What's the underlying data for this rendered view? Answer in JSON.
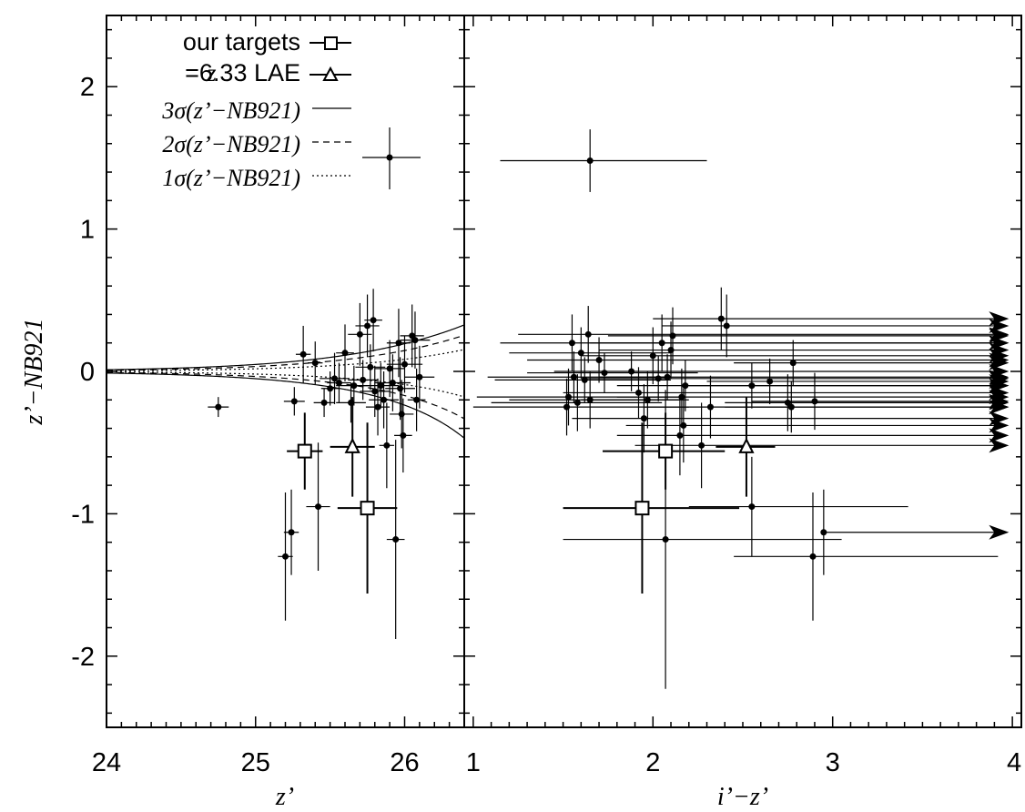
{
  "chart_data": {
    "type": "scatter",
    "ylabel": "z’−NB921",
    "ylim": [
      -2.5,
      2.5
    ],
    "yticks": [
      2,
      1,
      0,
      -1,
      -2
    ],
    "yticklabels": [
      "2",
      "1",
      "0",
      "-1",
      "-2"
    ],
    "legend": {
      "placement": "top-left",
      "entries": [
        {
          "label": "our targets",
          "symbol": "square"
        },
        {
          "label": "z=6.33 LAE",
          "symbol": "triangle"
        },
        {
          "label": "3σ(z’−NB921)",
          "line": "solid"
        },
        {
          "label": "2σ(z’−NB921)",
          "line": "dashed"
        },
        {
          "label": "1σ(z’−NB921)",
          "line": "dotted"
        }
      ],
      "typical_error_sample": {
        "x": 25.96,
        "y": 1.48,
        "xerr": 0.18,
        "yerr": 0.2
      }
    },
    "panels": [
      {
        "xlabel": "z’",
        "xlim": [
          24,
          26.4
        ],
        "xticks": [
          24,
          25,
          26
        ],
        "xticklabels": [
          "24",
          "25",
          "26"
        ],
        "sigma_curves": [
          {
            "label": "3σ(z’−NB921)",
            "style": "solid",
            "a": 0.0108,
            "b": 1.45,
            "x0": 24
          },
          {
            "label": "2σ(z’−NB921)",
            "style": "dashed",
            "a": 0.0072,
            "b": 1.5,
            "x0": 24
          },
          {
            "label": "1σ(z’−NB921)",
            "style": "dotted",
            "a": 0.0036,
            "b": 1.56,
            "x0": 24
          }
        ],
        "targets": [
          {
            "x": 25.33,
            "y": -0.56,
            "xerr": 0.12,
            "yerr": 0.27
          },
          {
            "x": 25.75,
            "y": -0.96,
            "xerr": 0.2,
            "yerr": 0.6
          }
        ],
        "lae": {
          "x": 25.65,
          "y": -0.53,
          "xerr": 0.15,
          "yerr": 0.35
        },
        "points": [
          {
            "x": 24.75,
            "y": -0.25,
            "xerr": 0.07,
            "yerr": 0.07
          },
          {
            "x": 25.2,
            "y": -1.3,
            "xerr": 0.05,
            "yerr": 0.45
          },
          {
            "x": 25.24,
            "y": -1.13,
            "xerr": 0.05,
            "yerr": 0.3
          },
          {
            "x": 25.26,
            "y": -0.21,
            "xerr": 0.07,
            "yerr": 0.1
          },
          {
            "x": 25.32,
            "y": 0.12,
            "xerr": 0.05,
            "yerr": 0.2
          },
          {
            "x": 25.4,
            "y": 0.06,
            "xerr": 0.05,
            "yerr": 0.15
          },
          {
            "x": 25.42,
            "y": -0.95,
            "xerr": 0.08,
            "yerr": 0.45
          },
          {
            "x": 25.46,
            "y": -0.22,
            "xerr": 0.07,
            "yerr": 0.1
          },
          {
            "x": 25.5,
            "y": -0.12,
            "xerr": 0.06,
            "yerr": 0.12
          },
          {
            "x": 25.53,
            "y": -0.05,
            "xerr": 0.1,
            "yerr": 0.18
          },
          {
            "x": 25.56,
            "y": -0.08,
            "xerr": 0.08,
            "yerr": 0.14
          },
          {
            "x": 25.6,
            "y": 0.13,
            "xerr": 0.06,
            "yerr": 0.2
          },
          {
            "x": 25.64,
            "y": -0.22,
            "xerr": 0.1,
            "yerr": 0.14
          },
          {
            "x": 25.66,
            "y": -0.1,
            "xerr": 0.12,
            "yerr": 0.14
          },
          {
            "x": 25.7,
            "y": 0.26,
            "xerr": 0.08,
            "yerr": 0.22
          },
          {
            "x": 25.72,
            "y": -0.06,
            "xerr": 0.1,
            "yerr": 0.14
          },
          {
            "x": 25.75,
            "y": 0.32,
            "xerr": 0.08,
            "yerr": 0.22
          },
          {
            "x": 25.77,
            "y": 0.03,
            "xerr": 0.1,
            "yerr": 0.16
          },
          {
            "x": 25.79,
            "y": 0.36,
            "xerr": 0.06,
            "yerr": 0.22
          },
          {
            "x": 25.8,
            "y": -0.14,
            "xerr": 0.1,
            "yerr": 0.18
          },
          {
            "x": 25.82,
            "y": -0.25,
            "xerr": 0.08,
            "yerr": 0.2
          },
          {
            "x": 25.84,
            "y": -0.1,
            "xerr": 0.12,
            "yerr": 0.16
          },
          {
            "x": 25.86,
            "y": -0.2,
            "xerr": 0.1,
            "yerr": 0.2
          },
          {
            "x": 25.88,
            "y": -0.52,
            "xerr": 0.05,
            "yerr": 0.3
          },
          {
            "x": 25.9,
            "y": 0.02,
            "xerr": 0.1,
            "yerr": 0.2
          },
          {
            "x": 25.92,
            "y": -0.08,
            "xerr": 0.12,
            "yerr": 0.2
          },
          {
            "x": 25.94,
            "y": -1.18,
            "xerr": 0.06,
            "yerr": 0.7
          },
          {
            "x": 25.96,
            "y": 0.2,
            "xerr": 0.08,
            "yerr": 0.24
          },
          {
            "x": 25.97,
            "y": -0.12,
            "xerr": 0.1,
            "yerr": 0.22
          },
          {
            "x": 25.98,
            "y": -0.3,
            "xerr": 0.08,
            "yerr": 0.24
          },
          {
            "x": 25.99,
            "y": -0.45,
            "xerr": 0.06,
            "yerr": 0.26
          },
          {
            "x": 26.0,
            "y": 0.05,
            "xerr": 0.12,
            "yerr": 0.2
          },
          {
            "x": 26.05,
            "y": 0.25,
            "xerr": 0.08,
            "yerr": 0.22
          },
          {
            "x": 26.08,
            "y": -0.2,
            "xerr": 0.06,
            "yerr": 0.22
          },
          {
            "x": 26.1,
            "y": -0.04,
            "xerr": 0.1,
            "yerr": 0.22
          },
          {
            "x": 26.07,
            "y": 0.22,
            "xerr": 0.1,
            "yerr": 0.2
          }
        ]
      },
      {
        "xlabel": "i’−z’",
        "xlim": [
          0.95,
          4.05
        ],
        "xticks": [
          1,
          2,
          3,
          4
        ],
        "xticklabels": [
          "1",
          "2",
          "3",
          "4"
        ],
        "targets": [
          {
            "x": 1.94,
            "y": -0.96,
            "xl": 1.5,
            "xr": 2.48,
            "yerr": 0.6
          },
          {
            "x": 2.07,
            "y": -0.56,
            "xl": 1.72,
            "xr": 2.4,
            "yerr": 0.27
          }
        ],
        "lae": {
          "x": 2.52,
          "y": -0.53,
          "xl": 2.35,
          "xr": 2.68,
          "yerr": 0.35
        },
        "points": [
          {
            "x": 1.52,
            "y": -0.25,
            "xl": 1.0,
            "xr": 2.2,
            "yerr": 0.2
          },
          {
            "x": 1.53,
            "y": -0.18,
            "xl": 1.02,
            "xr": 2.15,
            "yerr": 0.2
          },
          {
            "x": 1.55,
            "y": 0.2,
            "xl": 1.15,
            "xr": 3.92,
            "arrow": true,
            "yerr": 0.2
          },
          {
            "x": 1.56,
            "y": -0.04,
            "xl": 1.08,
            "xr": 2.1,
            "yerr": 0.18
          },
          {
            "x": 1.58,
            "y": -0.22,
            "xl": 1.1,
            "xr": 2.05,
            "yerr": 0.2
          },
          {
            "x": 1.6,
            "y": 0.13,
            "xl": 1.2,
            "xr": 2.1,
            "yerr": 0.18
          },
          {
            "x": 1.62,
            "y": -0.06,
            "xl": 1.12,
            "xr": 2.1,
            "yerr": 0.16
          },
          {
            "x": 1.64,
            "y": 0.26,
            "xl": 1.25,
            "xr": 3.92,
            "arrow": true,
            "yerr": 0.2
          },
          {
            "x": 1.65,
            "y": -0.2,
            "xl": 1.2,
            "xr": 2.15,
            "yerr": 0.2
          },
          {
            "x": 1.65,
            "y": 1.48,
            "xl": 1.15,
            "xr": 2.3,
            "yerr": 0.22
          },
          {
            "x": 1.7,
            "y": 0.08,
            "xl": 1.3,
            "xr": 3.92,
            "arrow": true,
            "yerr": 0.16
          },
          {
            "x": 1.73,
            "y": -0.01,
            "xl": 1.3,
            "xr": 2.25,
            "yerr": 0.14
          },
          {
            "x": 1.88,
            "y": 0.0,
            "xl": 1.45,
            "xr": 3.92,
            "arrow": true,
            "yerr": 0.14
          },
          {
            "x": 1.92,
            "y": -0.15,
            "xl": 1.5,
            "xr": 3.92,
            "arrow": true,
            "yerr": 0.18
          },
          {
            "x": 1.95,
            "y": -0.33,
            "xl": 1.55,
            "xr": 3.92,
            "arrow": true,
            "yerr": 0.24
          },
          {
            "x": 1.97,
            "y": -0.2,
            "xl": 1.6,
            "xr": 2.2,
            "yerr": 0.2
          },
          {
            "x": 2.0,
            "y": 0.11,
            "xl": 1.6,
            "xr": 3.92,
            "arrow": true,
            "yerr": 0.2
          },
          {
            "x": 2.03,
            "y": -0.05,
            "xl": 1.6,
            "xr": 3.92,
            "arrow": true,
            "yerr": 0.16
          },
          {
            "x": 2.05,
            "y": 0.2,
            "xl": 1.65,
            "xr": 3.92,
            "arrow": true,
            "yerr": 0.2
          },
          {
            "x": 2.07,
            "y": -1.18,
            "xl": 1.5,
            "xr": 3.05,
            "yerr": 1.05
          },
          {
            "x": 2.08,
            "y": -0.04,
            "xl": 1.7,
            "xr": 3.92,
            "arrow": true,
            "yerr": 0.16
          },
          {
            "x": 2.1,
            "y": 0.15,
            "xl": 1.7,
            "xr": 3.92,
            "arrow": true,
            "yerr": 0.2
          },
          {
            "x": 2.11,
            "y": 0.25,
            "xl": 1.75,
            "xr": 3.92,
            "arrow": true,
            "yerr": 0.2
          },
          {
            "x": 2.15,
            "y": -0.45,
            "xl": 1.8,
            "xr": 3.92,
            "arrow": true,
            "yerr": 0.28
          },
          {
            "x": 2.16,
            "y": -0.18,
            "xl": 1.8,
            "xr": 3.92,
            "arrow": true,
            "yerr": 0.2
          },
          {
            "x": 2.17,
            "y": -0.38,
            "xl": 1.85,
            "xr": 3.92,
            "arrow": true,
            "yerr": 0.26
          },
          {
            "x": 2.18,
            "y": -0.1,
            "xl": 1.8,
            "xr": 3.92,
            "arrow": true,
            "yerr": 0.18
          },
          {
            "x": 2.27,
            "y": -0.52,
            "xl": 1.9,
            "xr": 3.92,
            "arrow": true,
            "yerr": 0.3
          },
          {
            "x": 2.32,
            "y": -0.25,
            "xl": 1.95,
            "xr": 3.92,
            "arrow": true,
            "yerr": 0.22
          },
          {
            "x": 2.38,
            "y": 0.37,
            "xl": 2.0,
            "xr": 3.92,
            "arrow": true,
            "yerr": 0.22
          },
          {
            "x": 2.41,
            "y": 0.32,
            "xl": 2.05,
            "xr": 3.92,
            "arrow": true,
            "yerr": 0.22
          },
          {
            "x": 2.55,
            "y": -0.95,
            "xl": 2.2,
            "xr": 3.42,
            "yerr": 0.35
          },
          {
            "x": 2.55,
            "y": -0.1,
            "xl": 2.2,
            "xr": 3.92,
            "arrow": true,
            "yerr": 0.16
          },
          {
            "x": 2.65,
            "y": -0.07,
            "xl": 2.3,
            "xr": 3.92,
            "arrow": true,
            "yerr": 0.16
          },
          {
            "x": 2.75,
            "y": -0.22,
            "xl": 2.4,
            "xr": 3.92,
            "arrow": true,
            "yerr": 0.2
          },
          {
            "x": 2.77,
            "y": -0.25,
            "xl": 2.4,
            "xr": 3.92,
            "arrow": true,
            "yerr": 0.18
          },
          {
            "x": 2.78,
            "y": 0.06,
            "xl": 2.45,
            "xr": 3.92,
            "arrow": true,
            "yerr": 0.16
          },
          {
            "x": 2.9,
            "y": -0.21,
            "xl": 2.55,
            "xr": 3.92,
            "arrow": true,
            "yerr": 0.2
          },
          {
            "x": 2.89,
            "y": -1.3,
            "xl": 2.45,
            "xr": 3.92,
            "yerr": 0.45
          },
          {
            "x": 2.95,
            "y": -1.13,
            "xl": 2.95,
            "xr": 3.92,
            "arrow": true,
            "yerr": 0.3
          }
        ]
      }
    ]
  }
}
